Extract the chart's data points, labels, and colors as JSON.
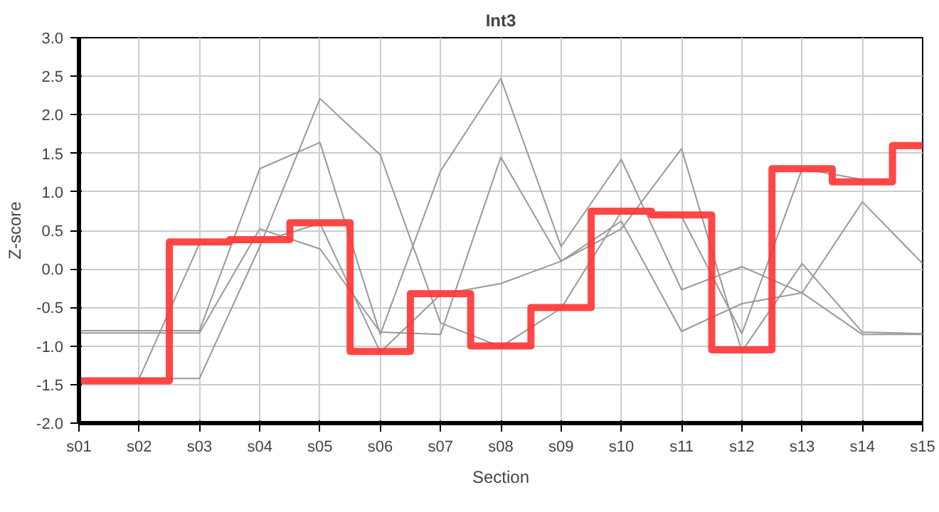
{
  "chart_data": {
    "type": "line",
    "title": "Int3",
    "xlabel": "Section",
    "ylabel": "Z-score",
    "categories": [
      "s01",
      "s02",
      "s03",
      "s04",
      "s05",
      "s06",
      "s07",
      "s08",
      "s09",
      "s10",
      "s11",
      "s12",
      "s13",
      "s14",
      "s15"
    ],
    "series": [
      {
        "color": "#999999",
        "values": [
          -0.8,
          -0.8,
          -0.8,
          1.3,
          1.64,
          -0.85,
          1.27,
          2.47,
          0.29,
          1.42,
          -0.27,
          0.03,
          -0.31,
          -0.85,
          -0.85
        ]
      },
      {
        "color": "#999999",
        "values": [
          -0.83,
          -0.83,
          -0.83,
          0.52,
          0.26,
          -0.82,
          -0.85,
          1.45,
          0.1,
          0.62,
          -0.81,
          -0.45,
          -0.31,
          0.87,
          0.07
        ]
      },
      {
        "color": "#999999",
        "values": [
          null,
          -1.42,
          0.33,
          0.35,
          0.59,
          -1.08,
          -0.33,
          -0.19,
          0.1,
          0.52,
          1.56,
          -1.07,
          0.07,
          -0.82,
          -0.84
        ]
      },
      {
        "color": "#999999",
        "values": [
          null,
          -1.42,
          -1.42,
          0.29,
          2.21,
          1.48,
          -0.7,
          -1.01,
          -0.51,
          0.74,
          0.68,
          -0.84,
          1.3,
          1.16,
          null
        ]
      },
      {
        "type": "step",
        "color": "#ff3333",
        "values": [
          -1.45,
          -1.45,
          0.35,
          0.38,
          0.6,
          -1.07,
          -0.32,
          -1.0,
          -0.5,
          0.75,
          0.7,
          -1.05,
          1.3,
          1.13,
          1.6
        ]
      }
    ],
    "ylim": [
      -2,
      3
    ],
    "yticks": [
      {
        "value": -2,
        "label": "-2.0"
      },
      {
        "value": -1.5,
        "label": "-1.5"
      },
      {
        "value": -1,
        "label": "-1.0"
      },
      {
        "value": -0.5,
        "label": "-0.5"
      },
      {
        "value": 0,
        "label": "0.0"
      },
      {
        "value": 0.5,
        "label": "0.5"
      },
      {
        "value": 1,
        "label": "1.0"
      },
      {
        "value": 1.5,
        "label": "1.5"
      },
      {
        "value": 2,
        "label": "2.0"
      },
      {
        "value": 2.5,
        "label": "2.5"
      },
      {
        "value": 3,
        "label": "3.0"
      }
    ],
    "grid": true
  }
}
